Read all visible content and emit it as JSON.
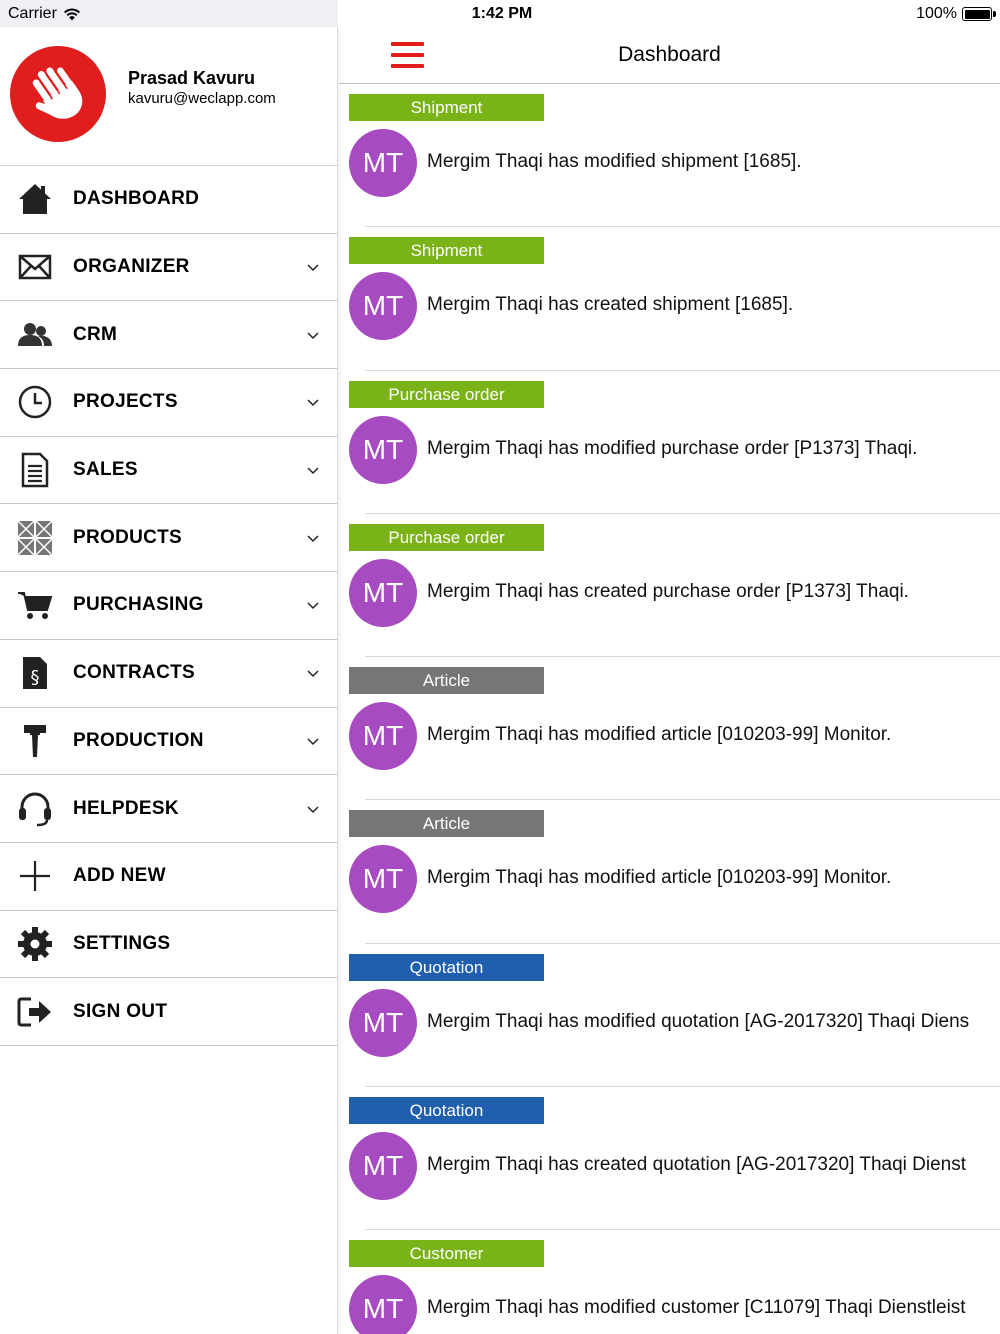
{
  "status": {
    "carrier": "Carrier",
    "time": "1:42 PM",
    "battery": "100%"
  },
  "profile": {
    "name": "Prasad Kavuru",
    "email": "kavuru@weclapp.com",
    "logo_color": "#e01e1e"
  },
  "menu": [
    {
      "label": "DASHBOARD",
      "icon": "home-icon",
      "expandable": false
    },
    {
      "label": "ORGANIZER",
      "icon": "envelope-icon",
      "expandable": true
    },
    {
      "label": "CRM",
      "icon": "users-icon",
      "expandable": true
    },
    {
      "label": "PROJECTS",
      "icon": "clock-icon",
      "expandable": true
    },
    {
      "label": "SALES",
      "icon": "document-icon",
      "expandable": true
    },
    {
      "label": "PRODUCTS",
      "icon": "boxes-icon",
      "expandable": true
    },
    {
      "label": "PURCHASING",
      "icon": "cart-icon",
      "expandable": true
    },
    {
      "label": "CONTRACTS",
      "icon": "contract-icon",
      "expandable": true
    },
    {
      "label": "PRODUCTION",
      "icon": "hammer-icon",
      "expandable": true
    },
    {
      "label": "HELPDESK",
      "icon": "headset-icon",
      "expandable": true
    },
    {
      "label": "ADD NEW",
      "icon": "plus-icon",
      "expandable": false
    },
    {
      "label": "SETTINGS",
      "icon": "gear-icon",
      "expandable": false
    },
    {
      "label": "SIGN OUT",
      "icon": "sign-out-icon",
      "expandable": false
    }
  ],
  "navbar": {
    "title": "Dashboard",
    "menu_color": "#e31b1b"
  },
  "colors": {
    "green": "#7ab317",
    "gray": "#767676",
    "blue": "#1f5fae",
    "avatar": "#a74bc0"
  },
  "feed": [
    {
      "tag": "Shipment",
      "tag_color": "green",
      "initials": "MT",
      "text": "Mergim Thaqi has modified shipment [1685]."
    },
    {
      "tag": "Shipment",
      "tag_color": "green",
      "initials": "MT",
      "text": "Mergim Thaqi has created shipment [1685]."
    },
    {
      "tag": "Purchase order",
      "tag_color": "green",
      "initials": "MT",
      "text": "Mergim Thaqi has modified purchase order [P1373] Thaqi."
    },
    {
      "tag": "Purchase order",
      "tag_color": "green",
      "initials": "MT",
      "text": "Mergim Thaqi has created purchase order [P1373] Thaqi."
    },
    {
      "tag": "Article",
      "tag_color": "gray",
      "initials": "MT",
      "text": "Mergim Thaqi has modified article [010203-99] Monitor."
    },
    {
      "tag": "Article",
      "tag_color": "gray",
      "initials": "MT",
      "text": "Mergim Thaqi has modified article [010203-99] Monitor."
    },
    {
      "tag": "Quotation",
      "tag_color": "blue",
      "initials": "MT",
      "text": "Mergim Thaqi has modified quotation [AG-2017320] Thaqi Diens"
    },
    {
      "tag": "Quotation",
      "tag_color": "blue",
      "initials": "MT",
      "text": "Mergim Thaqi has created quotation [AG-2017320] Thaqi Dienst"
    },
    {
      "tag": "Customer",
      "tag_color": "green",
      "initials": "MT",
      "text": "Mergim Thaqi has modified customer [C11079] Thaqi Dienstleist"
    }
  ]
}
